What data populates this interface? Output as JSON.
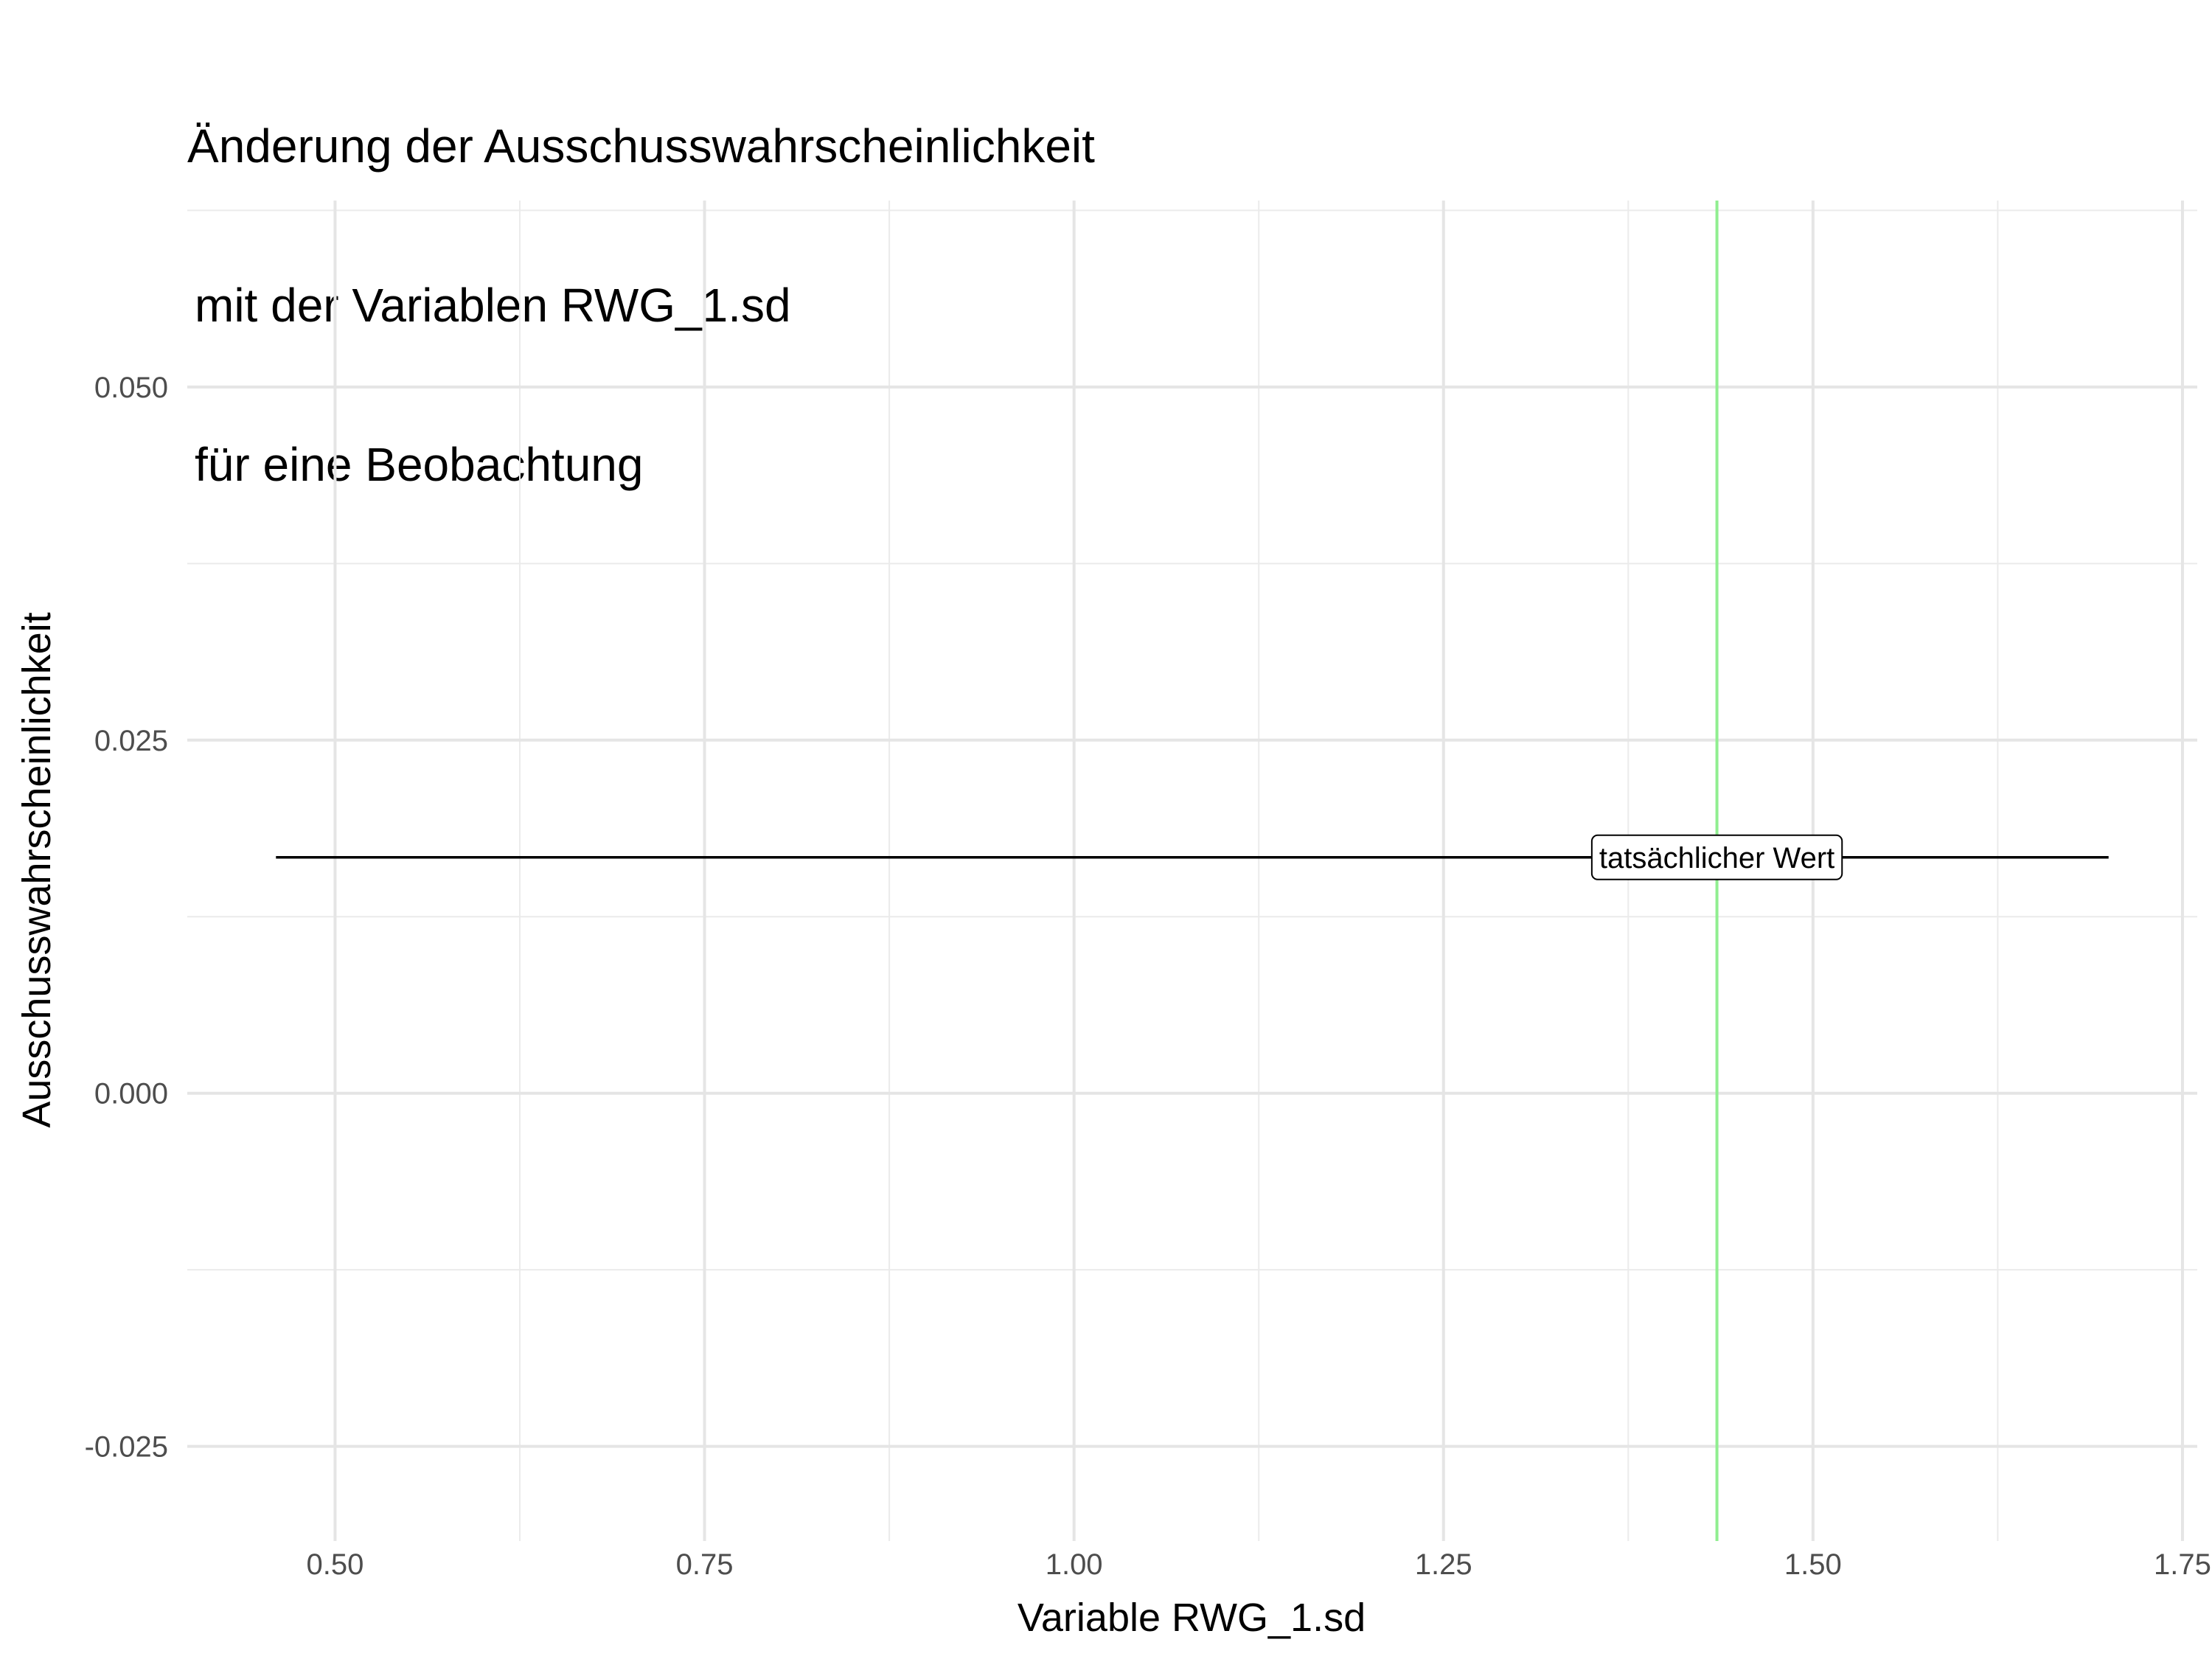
{
  "chart_data": {
    "type": "line",
    "title_lines": [
      "Änderung der Ausschusswahrscheinlichkeit",
      "mit der Variablen RWG_1.sd",
      "für eine Beobachtung"
    ],
    "xlabel": "Variable RWG_1.sd",
    "ylabel": "Ausschusswahrscheinlichkeit",
    "xlim": [
      0.4,
      1.76
    ],
    "ylim": [
      -0.0317,
      0.0632
    ],
    "x_ticks": [
      0.5,
      0.75,
      1.0,
      1.25,
      1.5,
      1.75
    ],
    "x_tick_labels": [
      "0.50",
      "0.75",
      "1.00",
      "1.25",
      "1.50",
      "1.75"
    ],
    "y_ticks": [
      -0.025,
      0.0,
      0.025,
      0.05
    ],
    "y_tick_labels": [
      "-0.025",
      "0.000",
      "0.025",
      "0.050"
    ],
    "grid": true,
    "series": [
      {
        "x": [
          0.46,
          1.7
        ],
        "y": [
          0.0167,
          0.0167
        ],
        "color": "#000000"
      }
    ],
    "vline": {
      "x": 1.435,
      "color": "#90EE90"
    },
    "annotation": {
      "text": "tatsächlicher Wert",
      "x": 1.435,
      "y": 0.0167
    }
  }
}
